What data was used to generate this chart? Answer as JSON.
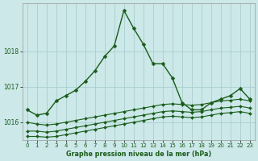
{
  "xlabel": "Graphe pression niveau de la mer (hPa)",
  "bg_color": "#cce8e8",
  "grid_color": "#aacece",
  "line_color": "#1a5c1a",
  "xlim": [
    -0.5,
    23.5
  ],
  "ylim": [
    1015.5,
    1019.35
  ],
  "yticks": [
    1016,
    1017,
    1018
  ],
  "xticks": [
    0,
    1,
    2,
    3,
    4,
    5,
    6,
    7,
    8,
    9,
    10,
    11,
    12,
    13,
    14,
    15,
    16,
    17,
    18,
    19,
    20,
    21,
    22,
    23
  ],
  "series": [
    {
      "y": [
        1016.35,
        1016.2,
        1016.25,
        1016.6,
        1016.75,
        1016.9,
        1017.15,
        1017.45,
        1017.85,
        1018.15,
        1019.15,
        1018.65,
        1018.2,
        1017.65,
        1017.65,
        1017.25,
        1016.55,
        1016.35,
        1016.35,
        1016.55,
        1016.65,
        1016.75,
        1016.95,
        1016.65
      ],
      "linestyle": "-",
      "marker": "D",
      "lw": 1.0,
      "ms": 2.5
    },
    {
      "y": [
        1016.0,
        1015.95,
        1015.92,
        1015.95,
        1016.0,
        1016.05,
        1016.1,
        1016.15,
        1016.2,
        1016.25,
        1016.3,
        1016.35,
        1016.4,
        1016.45,
        1016.5,
        1016.52,
        1016.5,
        1016.48,
        1016.5,
        1016.55,
        1016.6,
        1016.62,
        1016.65,
        1016.6
      ],
      "linestyle": "-",
      "marker": "D",
      "lw": 0.8,
      "ms": 2.0
    },
    {
      "y": [
        1015.75,
        1015.75,
        1015.72,
        1015.75,
        1015.8,
        1015.85,
        1015.9,
        1015.95,
        1016.0,
        1016.05,
        1016.1,
        1016.15,
        1016.2,
        1016.25,
        1016.3,
        1016.32,
        1016.3,
        1016.28,
        1016.3,
        1016.35,
        1016.4,
        1016.42,
        1016.45,
        1016.4
      ],
      "linestyle": "-",
      "marker": "D",
      "lw": 0.8,
      "ms": 2.0
    },
    {
      "y": [
        1015.6,
        1015.6,
        1015.58,
        1015.6,
        1015.65,
        1015.7,
        1015.75,
        1015.8,
        1015.85,
        1015.9,
        1015.95,
        1016.0,
        1016.05,
        1016.1,
        1016.15,
        1016.17,
        1016.15,
        1016.13,
        1016.15,
        1016.2,
        1016.25,
        1016.27,
        1016.3,
        1016.25
      ],
      "linestyle": "-",
      "marker": "D",
      "lw": 0.8,
      "ms": 2.0
    }
  ]
}
